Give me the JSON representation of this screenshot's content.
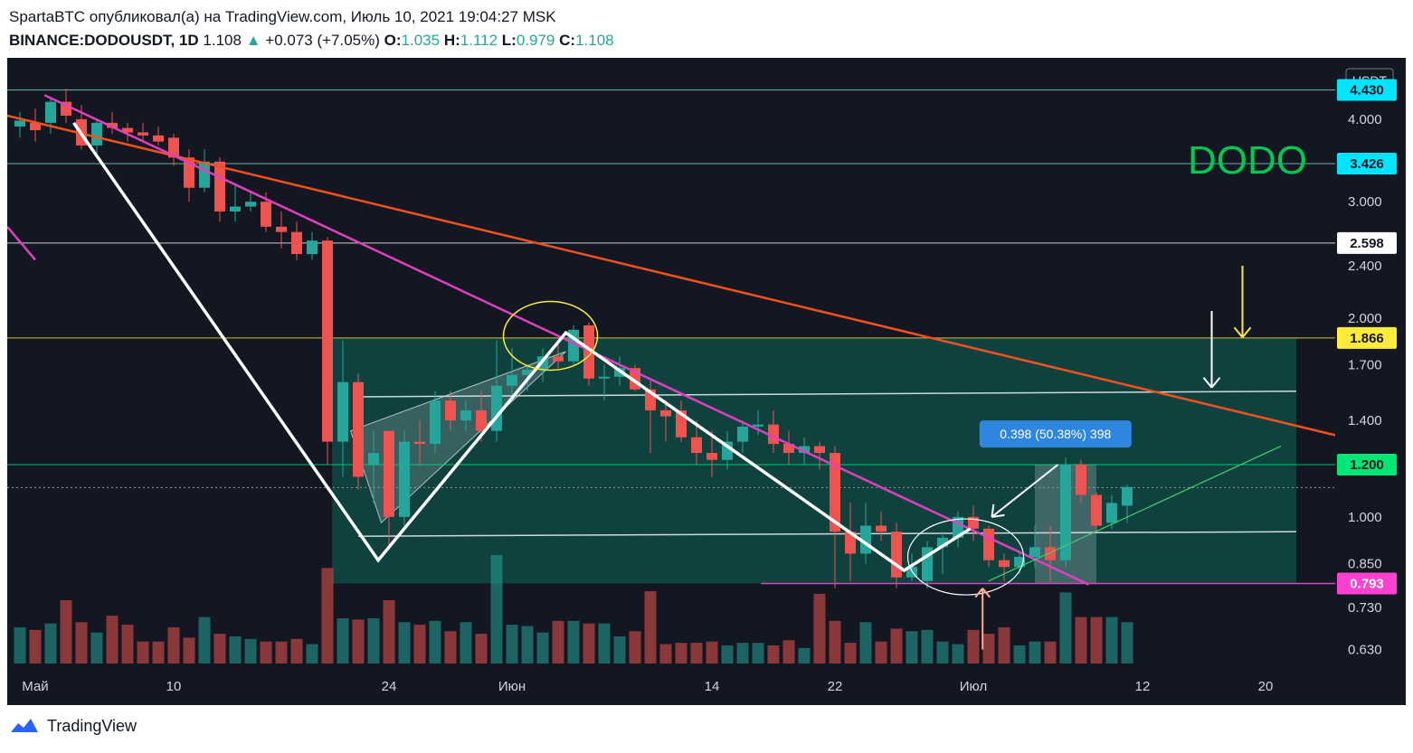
{
  "header": {
    "line1": "SpartaBTC опубликовал(а) на TradingView.com, Июль 10, 2021 19:04:27 MSK",
    "symbol": "BINANCE:DODOUSDT, 1D",
    "last": "1.108",
    "change": "+0.073 (+7.05%)",
    "o_label": "O:",
    "o": "1.035",
    "h_label": "H:",
    "h": "1.112",
    "l_label": "L:",
    "l": "0.979",
    "c_label": "C:",
    "c": "1.108"
  },
  "footer": {
    "brand": "TradingView"
  },
  "colors": {
    "up": "#26a69a",
    "down": "#ef5350",
    "bg": "#131722",
    "pink": "#e040c0",
    "orange": "#f4511e",
    "white": "#ffffff",
    "yellow": "#ffeb3b",
    "green": "#00e676"
  },
  "chart_data": {
    "type": "candlestick",
    "title": "DODO",
    "currency": "USDT",
    "scale": "log",
    "ylim": [
      0.6,
      4.8
    ],
    "y_ticks": [
      "4.000",
      "3.000",
      "2.400",
      "2.000",
      "1.700",
      "1.400",
      "1.000",
      "0.850",
      "0.730",
      "0.630"
    ],
    "x_ticks": [
      "Май",
      "10",
      "24",
      "Июн",
      "14",
      "22",
      "Июл",
      "12",
      "20"
    ],
    "price_labels": [
      {
        "value": "4.430",
        "color": "#00e5ff"
      },
      {
        "value": "3.426",
        "color": "#00e5ff"
      },
      {
        "value": "2.598",
        "color": "#ffffff"
      },
      {
        "value": "1.866",
        "color": "#ffeb3b"
      },
      {
        "value": "1.200",
        "color": "#00e676"
      },
      {
        "value": "0.793",
        "color": "#ff40d0"
      }
    ],
    "measure_label": "0.398 (50.38%) 398",
    "candles": [
      {
        "o": 3.9,
        "h": 4.1,
        "l": 3.75,
        "c": 3.98
      },
      {
        "o": 3.95,
        "h": 4.15,
        "l": 3.7,
        "c": 3.85
      },
      {
        "o": 3.95,
        "h": 4.3,
        "l": 3.8,
        "c": 4.25
      },
      {
        "o": 4.25,
        "h": 4.45,
        "l": 3.95,
        "c": 4.05
      },
      {
        "o": 4.0,
        "h": 4.2,
        "l": 3.6,
        "c": 3.65
      },
      {
        "o": 3.65,
        "h": 4.0,
        "l": 3.55,
        "c": 3.95
      },
      {
        "o": 3.95,
        "h": 4.1,
        "l": 3.8,
        "c": 3.88
      },
      {
        "o": 3.88,
        "h": 3.95,
        "l": 3.7,
        "c": 3.82
      },
      {
        "o": 3.82,
        "h": 3.95,
        "l": 3.7,
        "c": 3.78
      },
      {
        "o": 3.78,
        "h": 3.9,
        "l": 3.65,
        "c": 3.7
      },
      {
        "o": 3.75,
        "h": 3.8,
        "l": 3.4,
        "c": 3.5
      },
      {
        "o": 3.5,
        "h": 3.6,
        "l": 3.0,
        "c": 3.15
      },
      {
        "o": 3.15,
        "h": 3.6,
        "l": 3.1,
        "c": 3.45
      },
      {
        "o": 3.45,
        "h": 3.5,
        "l": 2.8,
        "c": 2.9
      },
      {
        "o": 2.9,
        "h": 3.2,
        "l": 2.8,
        "c": 2.95
      },
      {
        "o": 2.95,
        "h": 3.1,
        "l": 2.9,
        "c": 3.0
      },
      {
        "o": 3.0,
        "h": 3.1,
        "l": 2.7,
        "c": 2.75
      },
      {
        "o": 2.75,
        "h": 2.9,
        "l": 2.55,
        "c": 2.7
      },
      {
        "o": 2.7,
        "h": 2.8,
        "l": 2.45,
        "c": 2.5
      },
      {
        "o": 2.5,
        "h": 2.7,
        "l": 2.45,
        "c": 2.62
      },
      {
        "o": 2.62,
        "h": 2.65,
        "l": 1.2,
        "c": 1.3
      },
      {
        "o": 1.3,
        "h": 1.85,
        "l": 1.15,
        "c": 1.6
      },
      {
        "o": 1.6,
        "h": 1.65,
        "l": 1.1,
        "c": 1.15
      },
      {
        "o": 1.2,
        "h": 1.35,
        "l": 1.05,
        "c": 1.25
      },
      {
        "o": 1.35,
        "h": 1.35,
        "l": 0.9,
        "c": 1.0
      },
      {
        "o": 1.0,
        "h": 1.35,
        "l": 0.97,
        "c": 1.3
      },
      {
        "o": 1.3,
        "h": 1.4,
        "l": 1.2,
        "c": 1.29
      },
      {
        "o": 1.29,
        "h": 1.55,
        "l": 1.25,
        "c": 1.5
      },
      {
        "o": 1.5,
        "h": 1.55,
        "l": 1.35,
        "c": 1.4
      },
      {
        "o": 1.4,
        "h": 1.5,
        "l": 1.35,
        "c": 1.45
      },
      {
        "o": 1.45,
        "h": 1.55,
        "l": 1.3,
        "c": 1.35
      },
      {
        "o": 1.35,
        "h": 1.85,
        "l": 1.3,
        "c": 1.58
      },
      {
        "o": 1.58,
        "h": 1.8,
        "l": 1.5,
        "c": 1.64
      },
      {
        "o": 1.64,
        "h": 1.7,
        "l": 1.55,
        "c": 1.67
      },
      {
        "o": 1.67,
        "h": 1.8,
        "l": 1.6,
        "c": 1.75
      },
      {
        "o": 1.75,
        "h": 1.85,
        "l": 1.68,
        "c": 1.72
      },
      {
        "o": 1.72,
        "h": 1.95,
        "l": 1.7,
        "c": 1.92
      },
      {
        "o": 1.95,
        "h": 1.97,
        "l": 1.58,
        "c": 1.62
      },
      {
        "o": 1.62,
        "h": 1.7,
        "l": 1.5,
        "c": 1.63
      },
      {
        "o": 1.63,
        "h": 1.75,
        "l": 1.58,
        "c": 1.68
      },
      {
        "o": 1.68,
        "h": 1.7,
        "l": 1.55,
        "c": 1.56
      },
      {
        "o": 1.56,
        "h": 1.62,
        "l": 1.25,
        "c": 1.45
      },
      {
        "o": 1.45,
        "h": 1.5,
        "l": 1.3,
        "c": 1.42
      },
      {
        "o": 1.45,
        "h": 1.5,
        "l": 1.3,
        "c": 1.32
      },
      {
        "o": 1.32,
        "h": 1.4,
        "l": 1.2,
        "c": 1.25
      },
      {
        "o": 1.25,
        "h": 1.35,
        "l": 1.15,
        "c": 1.22
      },
      {
        "o": 1.22,
        "h": 1.35,
        "l": 1.18,
        "c": 1.3
      },
      {
        "o": 1.3,
        "h": 1.4,
        "l": 1.25,
        "c": 1.37
      },
      {
        "o": 1.37,
        "h": 1.45,
        "l": 1.33,
        "c": 1.38
      },
      {
        "o": 1.38,
        "h": 1.45,
        "l": 1.25,
        "c": 1.29
      },
      {
        "o": 1.29,
        "h": 1.35,
        "l": 1.2,
        "c": 1.25
      },
      {
        "o": 1.25,
        "h": 1.32,
        "l": 1.2,
        "c": 1.28
      },
      {
        "o": 1.28,
        "h": 1.3,
        "l": 1.18,
        "c": 1.25
      },
      {
        "o": 1.25,
        "h": 1.28,
        "l": 0.78,
        "c": 0.95
      },
      {
        "o": 0.95,
        "h": 1.05,
        "l": 0.8,
        "c": 0.88
      },
      {
        "o": 0.88,
        "h": 1.05,
        "l": 0.85,
        "c": 0.97
      },
      {
        "o": 0.97,
        "h": 1.02,
        "l": 0.92,
        "c": 0.95
      },
      {
        "o": 0.95,
        "h": 0.98,
        "l": 0.78,
        "c": 0.81
      },
      {
        "o": 0.81,
        "h": 0.88,
        "l": 0.8,
        "c": 0.84
      },
      {
        "o": 0.8,
        "h": 0.92,
        "l": 0.78,
        "c": 0.9
      },
      {
        "o": 0.9,
        "h": 0.95,
        "l": 0.82,
        "c": 0.93
      },
      {
        "o": 0.93,
        "h": 1.02,
        "l": 0.9,
        "c": 1.0
      },
      {
        "o": 1.0,
        "h": 1.04,
        "l": 0.92,
        "c": 0.96
      },
      {
        "o": 0.96,
        "h": 0.97,
        "l": 0.84,
        "c": 0.86
      },
      {
        "o": 0.86,
        "h": 0.88,
        "l": 0.8,
        "c": 0.84
      },
      {
        "o": 0.84,
        "h": 0.89,
        "l": 0.82,
        "c": 0.87
      },
      {
        "o": 0.87,
        "h": 0.97,
        "l": 0.84,
        "c": 0.9
      },
      {
        "o": 0.9,
        "h": 0.97,
        "l": 0.8,
        "c": 0.86
      },
      {
        "o": 0.86,
        "h": 1.23,
        "l": 0.84,
        "c": 1.2
      },
      {
        "o": 1.2,
        "h": 1.22,
        "l": 1.05,
        "c": 1.08
      },
      {
        "o": 1.08,
        "h": 1.09,
        "l": 0.95,
        "c": 0.97
      },
      {
        "o": 0.98,
        "h": 1.08,
        "l": 0.96,
        "c": 1.05
      },
      {
        "o": 1.04,
        "h": 1.12,
        "l": 0.98,
        "c": 1.11
      }
    ],
    "volume": [
      2.8,
      2.6,
      3.1,
      4.9,
      3.2,
      2.4,
      3.7,
      3.0,
      1.7,
      1.7,
      2.8,
      2.0,
      3.6,
      2.3,
      2.1,
      1.9,
      1.7,
      1.7,
      1.9,
      1.5,
      7.4,
      3.5,
      3.4,
      3.5,
      4.9,
      3.2,
      3.0,
      3.3,
      2.5,
      3.2,
      2.3,
      8.4,
      3.0,
      2.9,
      2.4,
      3.3,
      3.3,
      3.1,
      3.1,
      2.1,
      2.5,
      5.6,
      1.5,
      1.6,
      1.6,
      1.7,
      1.4,
      1.6,
      1.6,
      1.4,
      1.8,
      1.2,
      5.4,
      3.3,
      1.6,
      3.2,
      1.7,
      2.7,
      2.5,
      2.6,
      1.7,
      1.5,
      2.6,
      2.3,
      2.8,
      1.4,
      1.7,
      1.7,
      5.5,
      3.6,
      3.6,
      3.6,
      3.2
    ]
  }
}
